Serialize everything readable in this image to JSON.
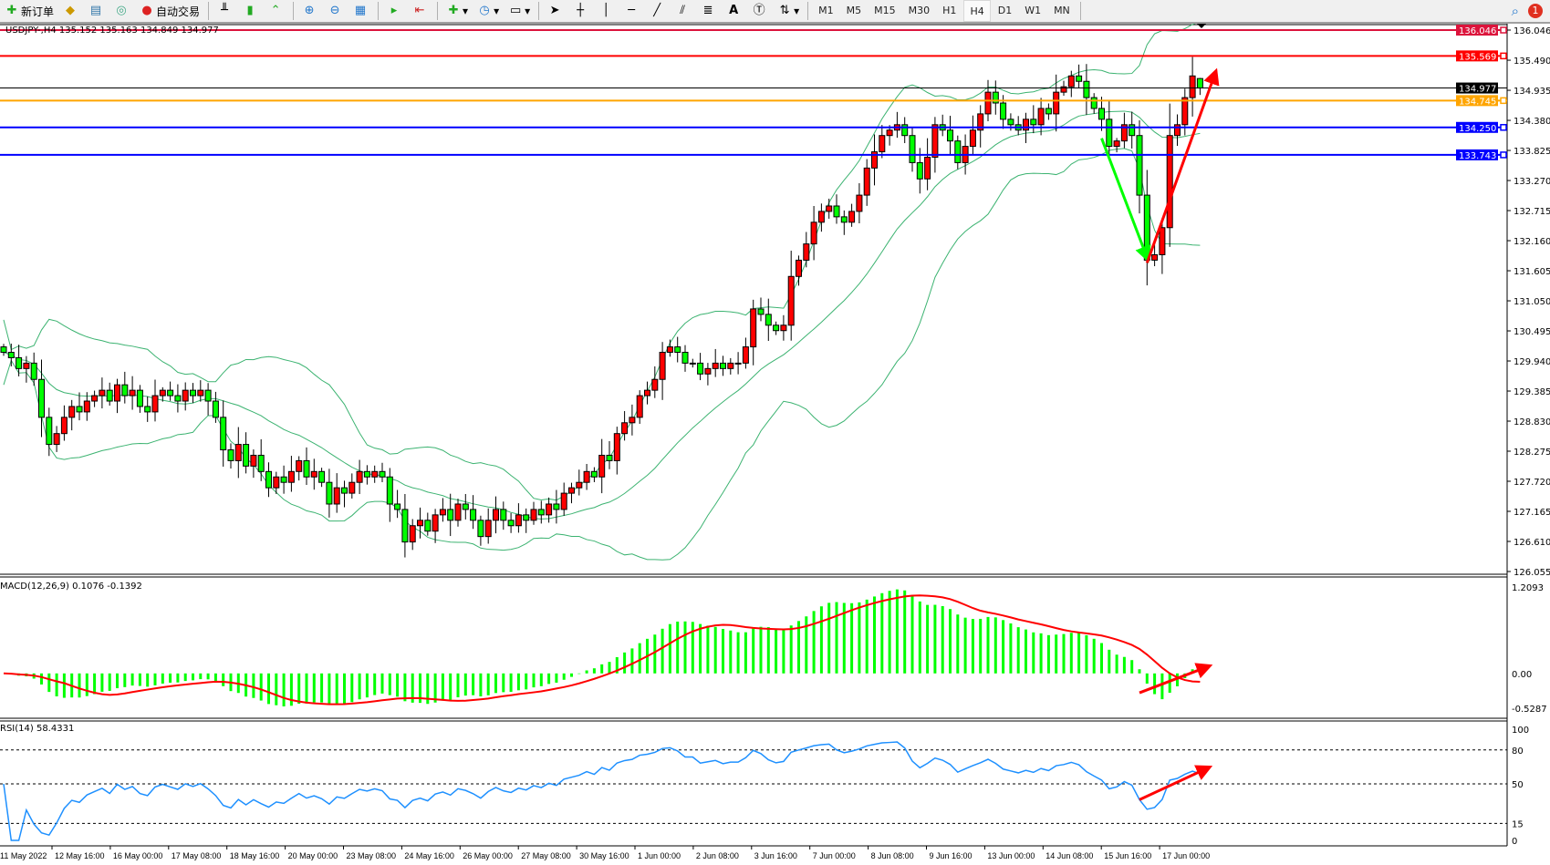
{
  "toolbar": {
    "items": [
      {
        "icon": "new-order-icon",
        "label": "新订单"
      },
      {
        "icon": "history-center-icon",
        "label": ""
      },
      {
        "icon": "market-watch-icon",
        "label": ""
      },
      {
        "icon": "signals-icon",
        "label": ""
      },
      {
        "icon": "auto-trading-icon",
        "label": "自动交易"
      }
    ],
    "timeframes": [
      "M1",
      "M5",
      "M15",
      "M30",
      "H1",
      "H4",
      "D1",
      "W1",
      "MN"
    ],
    "active_timeframe": "H4",
    "notification_count": "1"
  },
  "chart_data": {
    "type": "candlestick",
    "symbol_header": "USDJPY-,H4  135.152 135.163 134.849 134.977",
    "bullish_color": "#ff0000",
    "bearish_color": "#00ff00",
    "closes": [
      130.1,
      130.0,
      129.8,
      129.9,
      129.6,
      128.9,
      128.4,
      128.6,
      128.9,
      129.1,
      129.0,
      129.2,
      129.3,
      129.4,
      129.2,
      129.5,
      129.3,
      129.4,
      129.1,
      129.0,
      129.3,
      129.4,
      129.3,
      129.2,
      129.4,
      129.3,
      129.4,
      129.2,
      128.9,
      128.3,
      128.1,
      128.4,
      128.0,
      128.2,
      127.9,
      127.6,
      127.8,
      127.7,
      127.9,
      128.1,
      127.8,
      127.9,
      127.7,
      127.3,
      127.6,
      127.5,
      127.7,
      127.9,
      127.8,
      127.9,
      127.8,
      127.3,
      127.2,
      126.6,
      126.9,
      127.0,
      126.8,
      127.1,
      127.2,
      127.0,
      127.3,
      127.2,
      127.0,
      126.7,
      127.0,
      127.2,
      127.0,
      126.9,
      127.1,
      127.0,
      127.2,
      127.1,
      127.3,
      127.2,
      127.5,
      127.6,
      127.7,
      127.9,
      127.8,
      128.2,
      128.1,
      128.6,
      128.8,
      128.9,
      129.3,
      129.4,
      129.6,
      130.1,
      130.2,
      130.1,
      129.9,
      129.9,
      129.7,
      129.8,
      129.9,
      129.8,
      129.9,
      129.9,
      130.2,
      130.9,
      130.8,
      130.6,
      130.5,
      130.6,
      131.5,
      131.8,
      132.1,
      132.5,
      132.7,
      132.8,
      132.6,
      132.5,
      132.7,
      133.0,
      133.5,
      133.8,
      134.1,
      134.2,
      134.3,
      134.1,
      133.6,
      133.3,
      133.7,
      134.3,
      134.2,
      134.0,
      133.6,
      133.9,
      134.2,
      134.5,
      134.9,
      134.7,
      134.4,
      134.3,
      134.2,
      134.4,
      134.3,
      134.6,
      134.5,
      134.9,
      135.0,
      135.2,
      135.1,
      134.8,
      134.6,
      134.4,
      133.9,
      134.0,
      134.3,
      134.1,
      133.0,
      131.8,
      131.9,
      132.4,
      134.1,
      134.3,
      134.8,
      135.2,
      134.977
    ],
    "last_bar": {
      "open": 135.152,
      "high": 135.163,
      "low": 134.849,
      "close": 134.977
    },
    "price_axis": {
      "range": [
        126.055,
        136.046
      ],
      "ticks": [
        "136.046",
        "135.490",
        "134.935",
        "134.380",
        "133.825",
        "133.270",
        "132.715",
        "132.160",
        "131.605",
        "131.050",
        "130.495",
        "129.940",
        "129.385",
        "128.830",
        "128.275",
        "127.720",
        "127.165",
        "126.610",
        "126.055"
      ]
    },
    "horizontal_lines": [
      {
        "price": "136.046",
        "color": "#dc143c"
      },
      {
        "price": "135.569",
        "color": "#ff0000"
      },
      {
        "price": "134.977",
        "color": "#000000",
        "bid": true
      },
      {
        "price": "134.745",
        "color": "#ffa500"
      },
      {
        "price": "134.250",
        "color": "#0000ff"
      },
      {
        "price": "133.743",
        "color": "#0000ff"
      }
    ],
    "indicators": {
      "bollinger": {
        "period": 20,
        "deviation": 2,
        "color": "#3cb371"
      },
      "macd": {
        "label": "MACD(12,26,9) 0.1076 -0.1392",
        "histogram_color": "#00ff00",
        "signal_color": "#ff0000",
        "axis_ticks": [
          "1.2093",
          "0.00",
          "-0.5287"
        ],
        "range": [
          -0.5287,
          1.2093
        ]
      },
      "rsi": {
        "label": "RSI(14) 58.4331",
        "color": "#1e90ff",
        "levels": [
          80,
          50,
          15
        ],
        "axis_ticks": [
          "100",
          "80",
          "50",
          "15",
          "0"
        ],
        "range": [
          0,
          100
        ]
      }
    },
    "date_axis": [
      "11 May 2022",
      "12 May 16:00",
      "16 May 00:00",
      "17 May 08:00",
      "18 May 16:00",
      "20 May 00:00",
      "23 May 08:00",
      "24 May 16:00",
      "26 May 00:00",
      "27 May 08:00",
      "30 May 16:00",
      "1 Jun 00:00",
      "2 Jun 08:00",
      "3 Jun 16:00",
      "7 Jun 00:00",
      "8 Jun 08:00",
      "9 Jun 16:00",
      "13 Jun 00:00",
      "14 Jun 08:00",
      "15 Jun 16:00",
      "17 Jun 00:00"
    ],
    "annotations": [
      {
        "type": "arrow",
        "pane": "price",
        "color": "#00ff00",
        "from": [
          145,
          134.05
        ],
        "to": [
          151,
          131.85
        ]
      },
      {
        "type": "arrow",
        "pane": "price",
        "color": "#ff0000",
        "from": [
          151,
          131.75
        ],
        "to": [
          160,
          135.25
        ]
      },
      {
        "type": "arrow",
        "pane": "macd",
        "color": "#ff0000",
        "from": [
          150,
          -0.26
        ],
        "to": [
          159,
          0.09
        ]
      },
      {
        "type": "arrow",
        "pane": "rsi",
        "color": "#ff0000",
        "from": [
          150,
          36
        ],
        "to": [
          159,
          64
        ]
      }
    ]
  }
}
